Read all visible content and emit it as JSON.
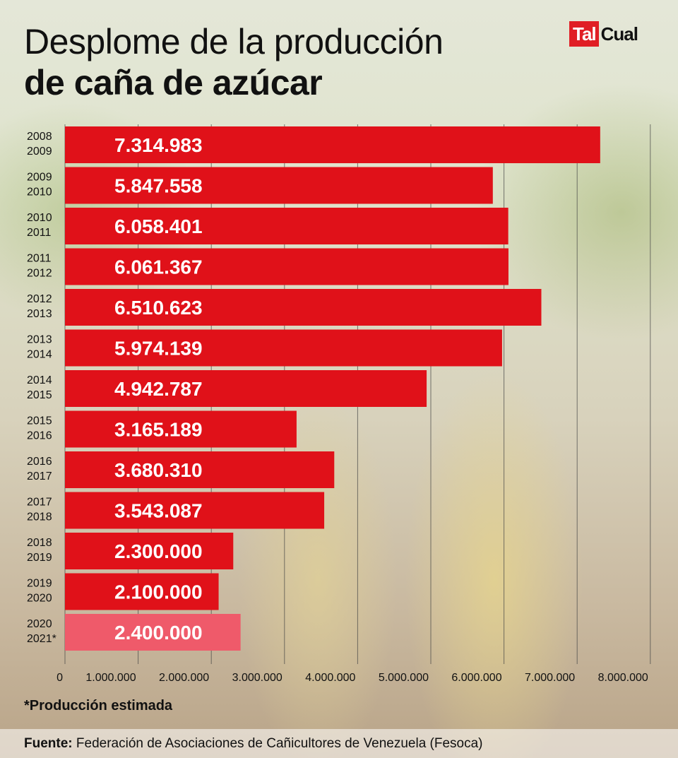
{
  "brand": {
    "logo_part1": "Tal",
    "logo_part2": "Cual"
  },
  "title_line1": "Desplome de la producción",
  "title_line2": "de caña de azúcar",
  "note": "*Producción estimada",
  "source_label": "Fuente:",
  "source_text": "Federación de Asociaciones de Cañicultores de Venezuela (Fesoca)",
  "colors": {
    "bar": "#e01119",
    "bar_estimated": "#ef5a6a",
    "grid": "#444444"
  },
  "chart_data": {
    "type": "bar",
    "orientation": "horizontal",
    "categories": [
      [
        "2008",
        "2009"
      ],
      [
        "2009",
        "2010"
      ],
      [
        "2010",
        "2011"
      ],
      [
        "2011",
        "2012"
      ],
      [
        "2012",
        "2013"
      ],
      [
        "2013",
        "2014"
      ],
      [
        "2014",
        "2015"
      ],
      [
        "2015",
        "2016"
      ],
      [
        "2016",
        "2017"
      ],
      [
        "2017",
        "2018"
      ],
      [
        "2018",
        "2019"
      ],
      [
        "2019",
        "2020"
      ],
      [
        "2020",
        "2021*"
      ]
    ],
    "values": [
      7314983,
      5847558,
      6058401,
      6061367,
      6510623,
      5974139,
      4942787,
      3165189,
      3680310,
      3543087,
      2300000,
      2100000,
      2400000
    ],
    "value_labels": [
      "7.314.983",
      "5.847.558",
      "6.058.401",
      "6.061.367",
      "6.510.623",
      "5.974.139",
      "4.942.787",
      "3.165.189",
      "3.680.310",
      "3.543.087",
      "2.300.000",
      "2.100.000",
      "2.400.000"
    ],
    "estimated": [
      false,
      false,
      false,
      false,
      false,
      false,
      false,
      false,
      false,
      false,
      false,
      false,
      true
    ],
    "xlim": [
      0,
      8000000
    ],
    "x_ticks": [
      0,
      1000000,
      2000000,
      3000000,
      4000000,
      5000000,
      6000000,
      7000000,
      8000000
    ],
    "x_tick_labels": [
      "0",
      "1.000.000",
      "2.000.000",
      "3.000.000",
      "4.000.000",
      "5.000.000",
      "6.000.000",
      "7.000.000",
      "8.000.000"
    ],
    "grid": true
  }
}
